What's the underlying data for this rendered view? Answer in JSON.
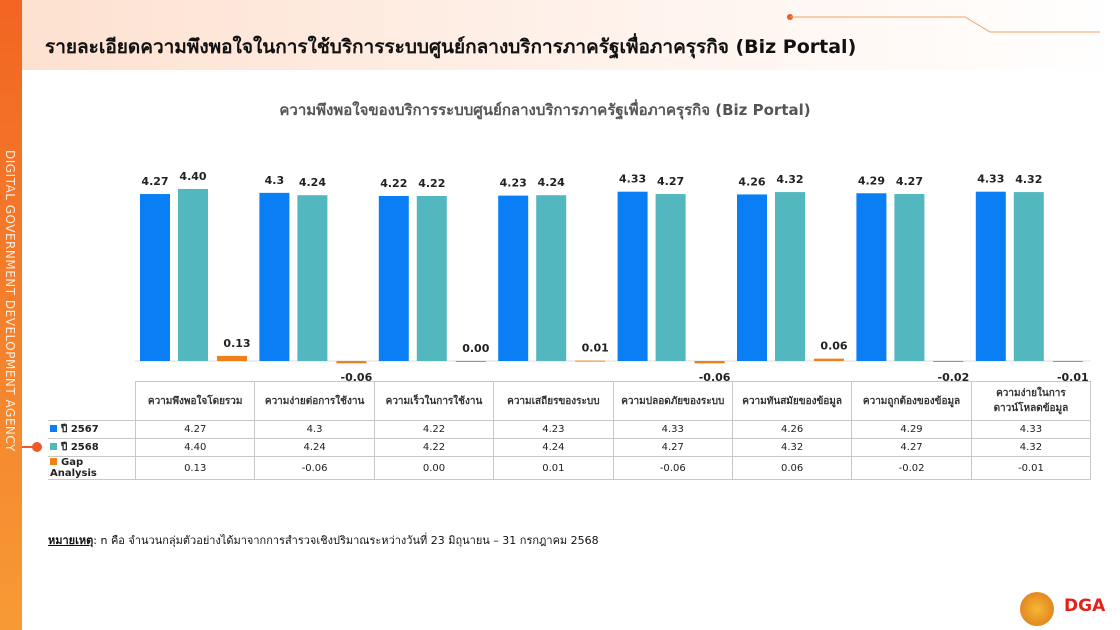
{
  "header": {
    "title": "รายละเอียดความพึงพอใจในการใช้บริการระบบศูนย์กลางบริการภาครัฐเพื่อภาครุรกิจ (Biz Portal)"
  },
  "sidebar_text": "DIGITAL GOVERNMENT DEVELOPMENT AGENCY",
  "chart_data": {
    "type": "bar",
    "title": "ความพึงพอใจของบริการระบบศูนย์กลางบริการภาครัฐเพื่อภาครุรกิจ (Biz Portal)",
    "categories": [
      "ความพึงพอใจโดยรวม",
      "ความง่ายต่อการใช้งาน",
      "ความเร็วในการใช้งาน",
      "ความเสถียรของระบบ",
      "ความปลอดภัยของระบบ",
      "ความทันสมัยของข้อมูล",
      "ความถูกต้องของข้อมูล",
      "ความง่ายในการดาวน์โหลดข้อมูล"
    ],
    "series": [
      {
        "name": "ปี 2567",
        "color": "#0a7ff5",
        "values": [
          4.27,
          4.3,
          4.22,
          4.23,
          4.33,
          4.26,
          4.29,
          4.33
        ],
        "value_labels": [
          "4.27",
          "4.3",
          "4.22",
          "4.23",
          "4.33",
          "4.26",
          "4.29",
          "4.33"
        ]
      },
      {
        "name": "ปี 2568",
        "color": "#52b7bf",
        "values": [
          4.4,
          4.24,
          4.22,
          4.24,
          4.27,
          4.32,
          4.27,
          4.32
        ],
        "value_labels": [
          "4.40",
          "4.24",
          "4.22",
          "4.24",
          "4.27",
          "4.32",
          "4.27",
          "4.32"
        ]
      },
      {
        "name": "Gap Analysis",
        "color": "#f0801a",
        "values": [
          0.13,
          -0.06,
          0,
          0.01,
          -0.06,
          0.06,
          -0.02,
          -0.01
        ],
        "value_labels": [
          "0.13",
          "-0.06",
          "0.00",
          "0.01",
          "-0.06",
          "0.06",
          "-0.02",
          "-0.01"
        ]
      }
    ]
  },
  "footnote": {
    "label": "หมายเหตุ",
    "text": ":  n คือ จำนวนกลุ่มตัวอย่างได้มาจากการสำรวจเชิงปริมาณระหว่างวันที่ 23 มิถุนายน – 31 กรกฎาคม 2568"
  },
  "logo_text": "DGA"
}
